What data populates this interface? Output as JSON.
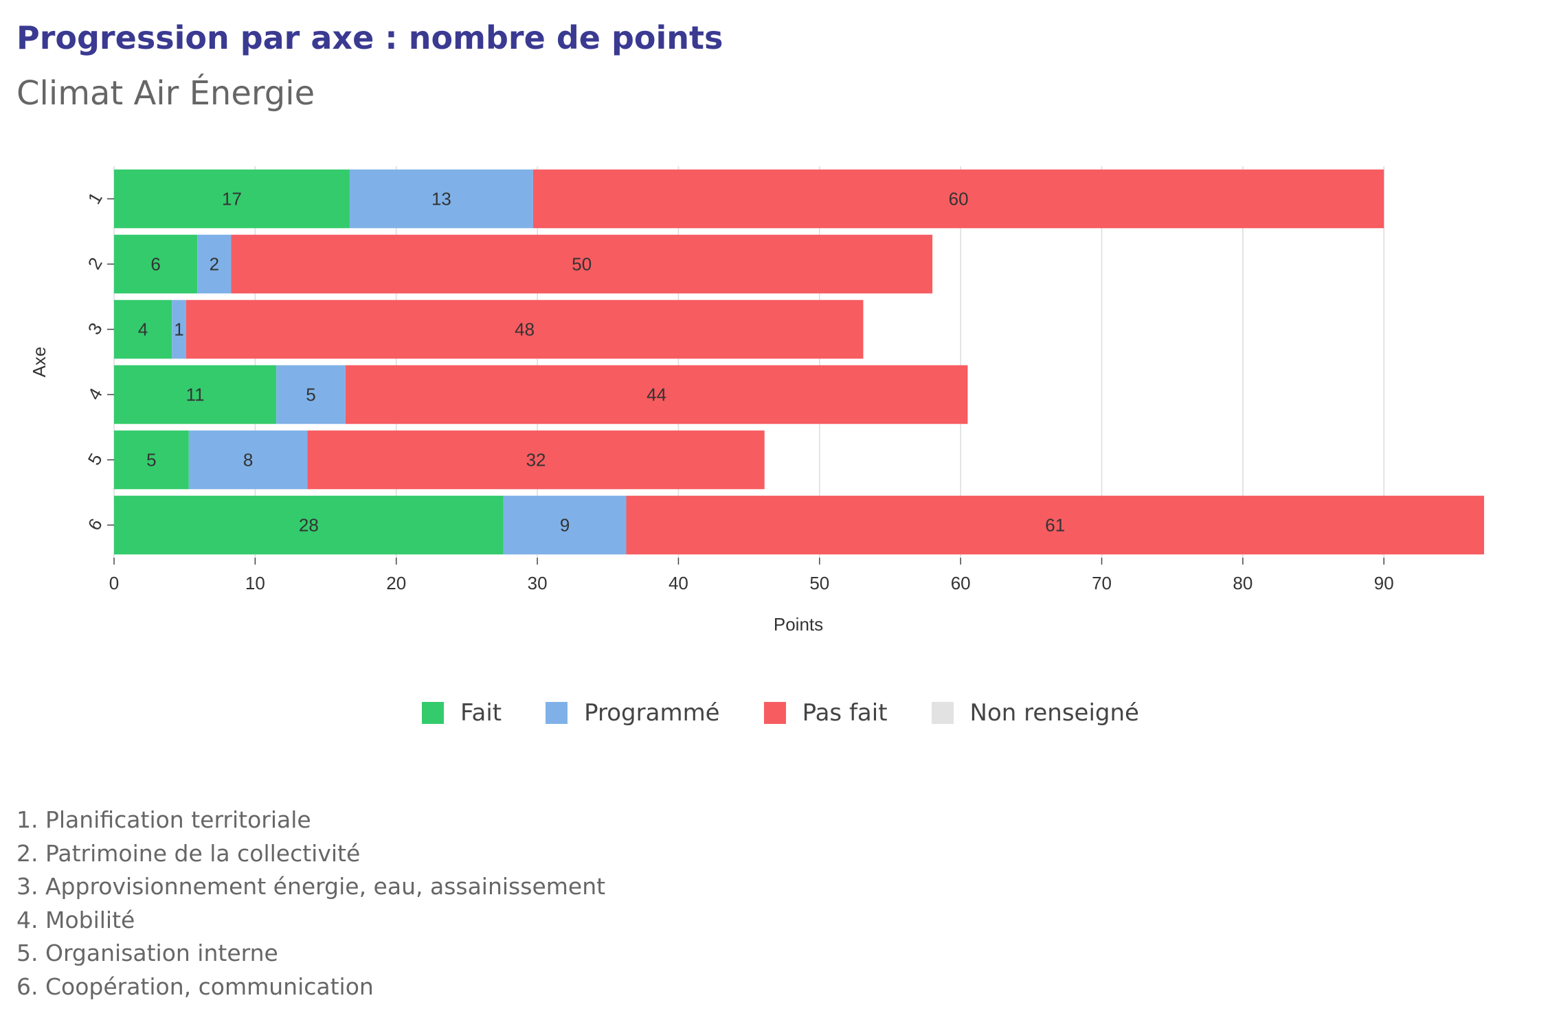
{
  "header": {
    "title": "Progression par axe : nombre de points",
    "subtitle": "Climat Air Énergie"
  },
  "colors": {
    "fait": "#34cb6c",
    "programme": "#7fb1e8",
    "pas_fait": "#f75c61",
    "non_renseigne": "#e2e2e2",
    "grid": "#dcdcdc",
    "tick_text": "#333333",
    "bar_label": "#333333"
  },
  "legend": [
    {
      "label": "Fait",
      "color_key": "fait"
    },
    {
      "label": "Programmé",
      "color_key": "programme"
    },
    {
      "label": "Pas fait",
      "color_key": "pas_fait"
    },
    {
      "label": "Non renseigné",
      "color_key": "non_renseigne"
    }
  ],
  "axis_descriptions": [
    "1. Planification territoriale",
    "2. Patrimoine de la collectivité",
    "3. Approvisionnement énergie, eau, assainissement",
    "4. Mobilité",
    "5. Organisation interne",
    "6. Coopération, communication"
  ],
  "chart_data": {
    "type": "bar",
    "orientation": "horizontal",
    "stacked": true,
    "title": "Progression par axe : nombre de points",
    "subtitle": "Climat Air Énergie",
    "xlabel": "Points",
    "ylabel": "Axe",
    "categories": [
      "1",
      "2",
      "3",
      "4",
      "5",
      "6"
    ],
    "series": [
      {
        "name": "Fait",
        "values": [
          16.7,
          5.9,
          4.1,
          11.5,
          5.3,
          27.6
        ],
        "labels": [
          "17",
          "6",
          "4",
          "11",
          "5",
          "28"
        ]
      },
      {
        "name": "Programmé",
        "values": [
          13.0,
          2.4,
          1.0,
          4.9,
          8.4,
          8.7
        ],
        "labels": [
          "13",
          "2",
          "1",
          "5",
          "8",
          "9"
        ]
      },
      {
        "name": "Pas fait",
        "values": [
          60.3,
          49.7,
          48.0,
          44.1,
          32.4,
          60.8
        ],
        "labels": [
          "60",
          "50",
          "48",
          "44",
          "32",
          "61"
        ]
      },
      {
        "name": "Non renseigné",
        "values": [
          0,
          0,
          0,
          0,
          0,
          0
        ],
        "labels": [
          "",
          "",
          "",
          "",
          "",
          ""
        ]
      }
    ],
    "xlim": [
      0,
      97
    ],
    "xticks": [
      0,
      10,
      20,
      30,
      40,
      50,
      60,
      70,
      80,
      90
    ],
    "grid": true,
    "legend_position": "bottom"
  }
}
